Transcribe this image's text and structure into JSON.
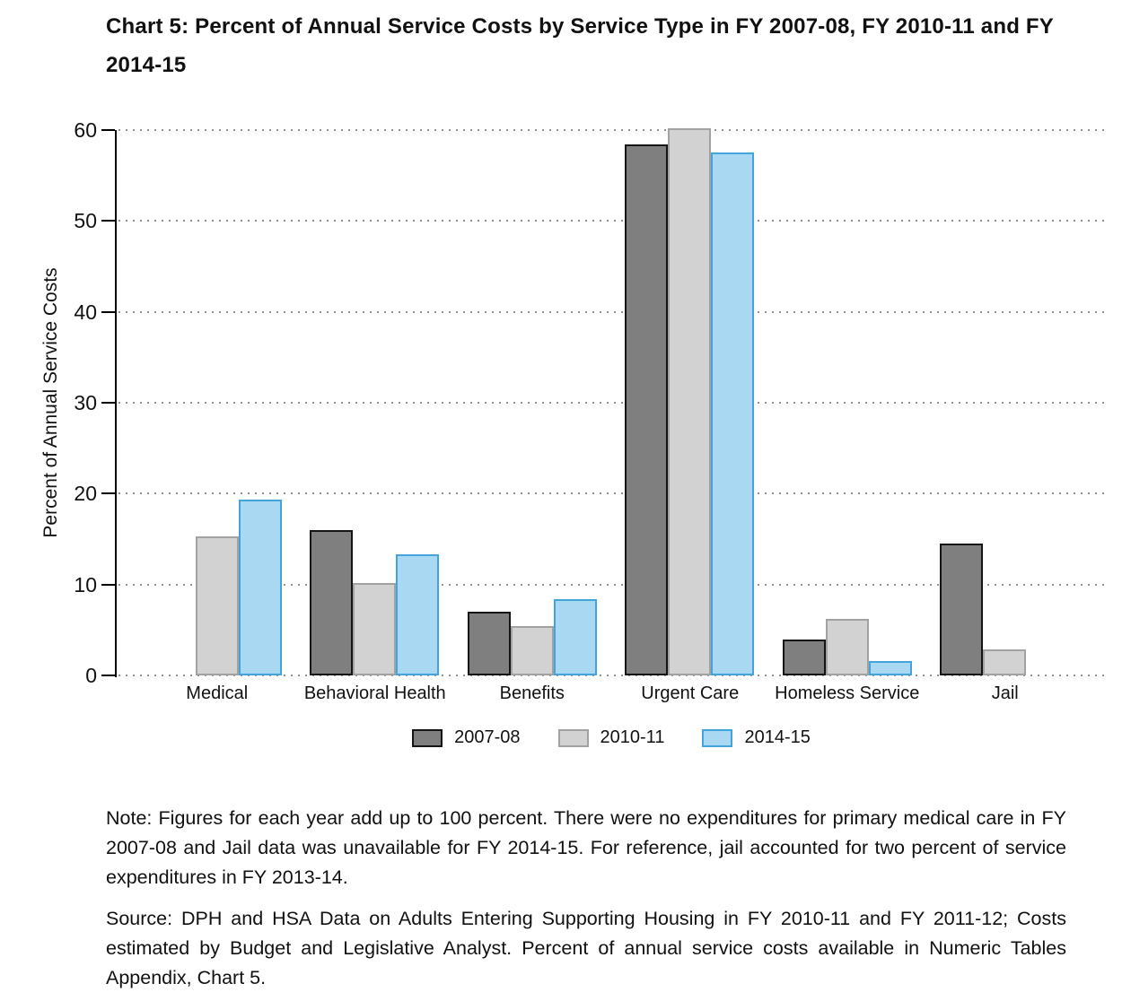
{
  "title": "Chart 5: Percent of Annual Service Costs by Service Type in FY 2007-08, FY 2010-11 and FY 2014-15",
  "chart_data": {
    "type": "bar",
    "title": "Chart 5: Percent of Annual Service Costs by Service Type in FY 2007-08, FY 2010-11 and FY 2014-15",
    "xlabel": "",
    "ylabel": "Percent of Annual Service Costs",
    "ylim": [
      0,
      60
    ],
    "yticks": [
      0,
      10,
      20,
      30,
      40,
      50,
      60
    ],
    "grid": "horizontal-dotted",
    "legend_position": "bottom-center",
    "categories": [
      "Medical",
      "Behavioral Health",
      "Benefits",
      "Urgent Care",
      "Homeless Service",
      "Jail"
    ],
    "series": [
      {
        "name": "2007-08",
        "fill": "#7f7f7f",
        "border": "#141414",
        "values": [
          null,
          16.0,
          7.0,
          58.4,
          3.9,
          14.5
        ]
      },
      {
        "name": "2010-11",
        "fill": "#d2d2d2",
        "border": "#a2a2a2",
        "values": [
          15.3,
          10.2,
          5.4,
          60.2,
          6.2,
          2.9
        ]
      },
      {
        "name": "2014-15",
        "fill": "#a9d9f2",
        "border": "#44a3da",
        "values": [
          19.3,
          13.3,
          8.4,
          57.5,
          1.6,
          null
        ]
      }
    ]
  },
  "note": "Note: Figures for each year add up to 100 percent. There were no expenditures for primary medical care in FY 2007-08 and Jail data was unavailable for FY 2014-15. For reference, jail accounted for two percent of service expenditures in FY 2013-14.",
  "source": "Source: DPH and HSA Data on Adults Entering Supporting Housing in FY 2010-11 and FY 2011-12; Costs estimated by Budget and Legislative Analyst. Percent of annual service costs available in Numeric Tables Appendix, Chart 5."
}
